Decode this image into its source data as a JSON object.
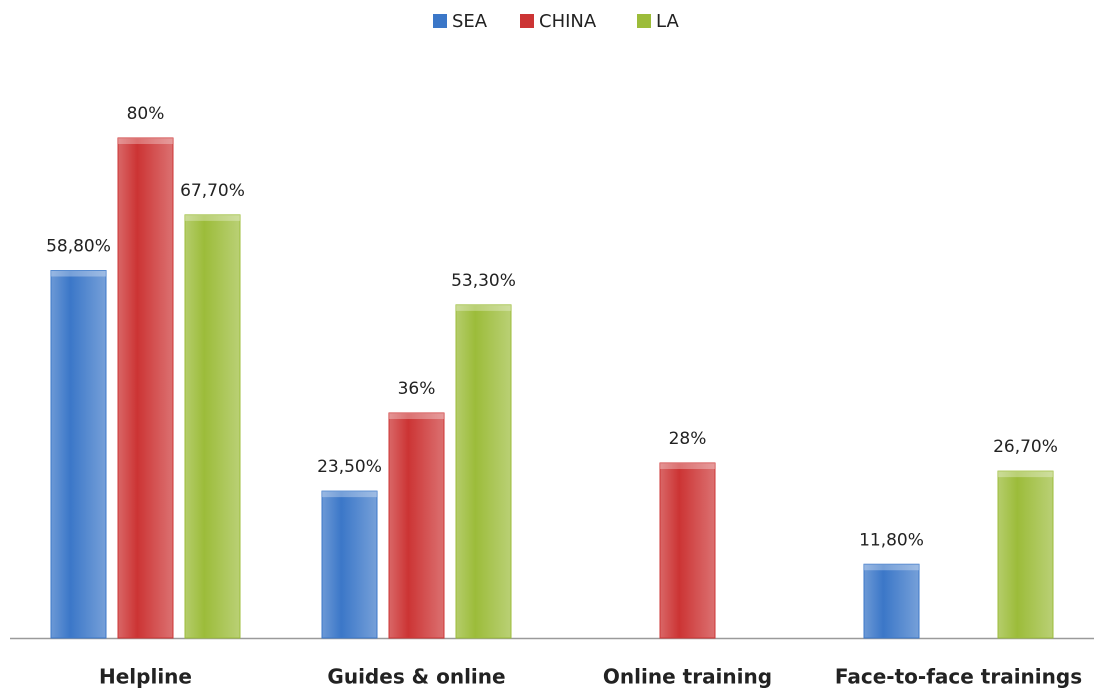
{
  "chart_data": {
    "type": "bar",
    "categories": [
      "Helpline",
      "Guides & online",
      "Online training",
      "Face-to-face trainings"
    ],
    "series": [
      {
        "name": "SEA",
        "color": "#3b77c8",
        "values": [
          58.8,
          23.5,
          null,
          11.8
        ],
        "value_labels": [
          "58,80%",
          "23,50%",
          null,
          "11,80%"
        ]
      },
      {
        "name": "CHINA",
        "color": "#cc3434",
        "values": [
          80,
          36,
          28,
          null
        ],
        "value_labels": [
          "80%",
          "36%",
          "28%",
          null
        ]
      },
      {
        "name": "LA",
        "color": "#9cbc3a",
        "values": [
          67.7,
          53.3,
          null,
          26.7
        ],
        "value_labels": [
          "67,70%",
          "53,30%",
          null,
          "26,70%"
        ]
      }
    ],
    "legend": "top"
  }
}
